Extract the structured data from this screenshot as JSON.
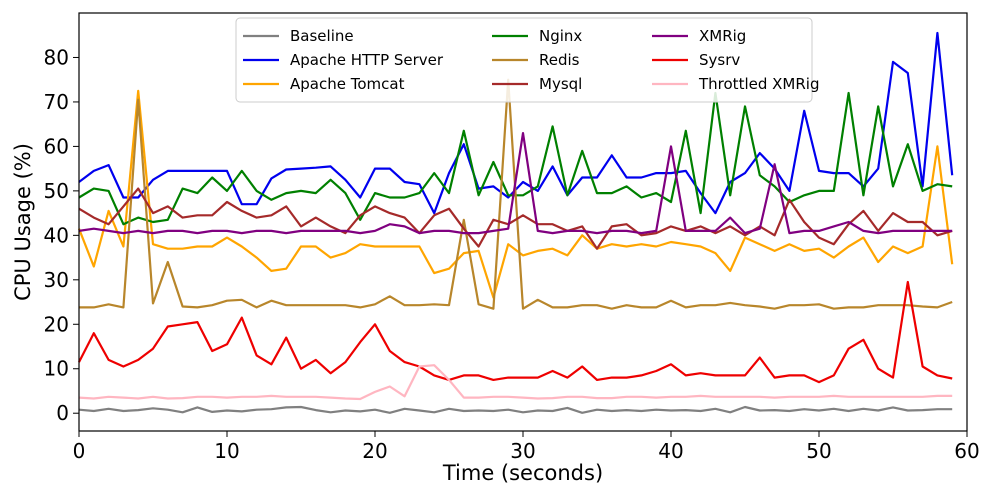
{
  "chart_data": {
    "type": "line",
    "title": "",
    "xlabel": "Time (seconds)",
    "ylabel": "CPU Usage (%)",
    "xlim": [
      0,
      60
    ],
    "ylim": [
      -4,
      90
    ],
    "xticks": [
      0,
      10,
      20,
      30,
      40,
      50,
      60
    ],
    "yticks": [
      0,
      10,
      20,
      30,
      40,
      50,
      60,
      70,
      80
    ],
    "grid": false,
    "legend_position": "top-center",
    "x": [
      0,
      1,
      2,
      3,
      4,
      5,
      6,
      7,
      8,
      9,
      10,
      11,
      12,
      13,
      14,
      15,
      16,
      17,
      18,
      19,
      20,
      21,
      22,
      23,
      24,
      25,
      26,
      27,
      28,
      29,
      30,
      31,
      32,
      33,
      34,
      35,
      36,
      37,
      38,
      39,
      40,
      41,
      42,
      43,
      44,
      45,
      46,
      47,
      48,
      49,
      50,
      51,
      52,
      53,
      54,
      55,
      56,
      57,
      58,
      59
    ],
    "series": [
      {
        "name": "Baseline",
        "color": "#808080",
        "values": [
          0.8,
          0.5,
          1.0,
          0.5,
          0.7,
          1.1,
          0.8,
          0.2,
          1.3,
          0.3,
          0.6,
          0.4,
          0.8,
          0.9,
          1.3,
          1.4,
          0.7,
          0.2,
          0.6,
          0.4,
          0.8,
          0.1,
          1.0,
          0.6,
          0.2,
          1.0,
          0.5,
          0.6,
          0.5,
          0.8,
          0.2,
          0.6,
          0.5,
          1.2,
          0.1,
          0.8,
          0.5,
          0.7,
          0.5,
          0.8,
          0.6,
          0.7,
          0.5,
          1.0,
          0.2,
          1.4,
          0.6,
          0.7,
          0.5,
          0.9,
          0.6,
          1.0,
          0.5,
          1.0,
          0.6,
          1.3,
          0.6,
          0.7,
          0.9,
          0.9
        ]
      },
      {
        "name": "Apache HTTP Server",
        "color": "#0000ee",
        "values": [
          52.0,
          54.5,
          55.8,
          48.5,
          48.5,
          52.5,
          54.5,
          54.5,
          54.5,
          54.5,
          54.5,
          47.0,
          47.0,
          52.8,
          54.8,
          55.0,
          55.2,
          55.5,
          52.5,
          48.5,
          55.0,
          55.0,
          52.0,
          51.5,
          45.0,
          54.0,
          60.5,
          50.5,
          51.0,
          48.5,
          52.0,
          50.0,
          55.5,
          49.0,
          53.0,
          53.0,
          58.0,
          53.0,
          53.0,
          54.0,
          54.0,
          54.5,
          49.5,
          45.0,
          52.0,
          54.0,
          58.5,
          55.0,
          50.0,
          68.0,
          54.5,
          54.0,
          54.0,
          51.0,
          55.0,
          79.0,
          76.5,
          51.0,
          85.5,
          53.5
        ]
      },
      {
        "name": "Apache Tomcat",
        "color": "#ffa500",
        "values": [
          41.5,
          33.0,
          45.5,
          37.5,
          72.5,
          38.0,
          37.0,
          37.0,
          37.5,
          37.5,
          39.5,
          37.5,
          35.0,
          32.0,
          32.5,
          37.5,
          37.5,
          35.0,
          36.0,
          38.0,
          37.5,
          37.5,
          37.5,
          37.5,
          31.5,
          32.5,
          36.0,
          36.5,
          26.0,
          38.0,
          35.5,
          36.5,
          37.0,
          35.5,
          40.0,
          37.0,
          38.0,
          37.5,
          38.0,
          37.5,
          38.5,
          38.0,
          37.5,
          36.0,
          32.0,
          39.5,
          38.0,
          36.5,
          38.0,
          36.5,
          37.0,
          35.0,
          37.5,
          39.5,
          34.0,
          37.5,
          36.0,
          37.5,
          60.0,
          33.5
        ]
      },
      {
        "name": "Nginx",
        "color": "#008000",
        "values": [
          48.5,
          50.5,
          50.0,
          42.5,
          44.0,
          43.0,
          43.5,
          50.5,
          49.5,
          53.0,
          50.0,
          54.5,
          50.0,
          48.0,
          49.5,
          50.0,
          49.5,
          52.5,
          49.5,
          43.5,
          49.5,
          48.5,
          48.5,
          49.5,
          54.0,
          49.5,
          63.5,
          49.0,
          56.5,
          49.0,
          49.0,
          51.0,
          64.5,
          49.0,
          59.0,
          49.5,
          49.5,
          51.0,
          48.5,
          49.5,
          47.5,
          63.5,
          45.0,
          72.0,
          49.0,
          69.0,
          53.5,
          51.0,
          47.5,
          49.0,
          50.0,
          50.0,
          72.0,
          49.0,
          69.0,
          51.0,
          60.5,
          50.0,
          51.5,
          51.0
        ]
      },
      {
        "name": "Redis",
        "color": "#b8862b",
        "values": [
          23.8,
          23.8,
          24.5,
          23.8,
          70.5,
          24.7,
          34.0,
          24.0,
          23.8,
          24.3,
          25.3,
          25.5,
          23.8,
          25.3,
          24.3,
          24.3,
          24.3,
          24.3,
          24.3,
          23.8,
          24.5,
          26.3,
          24.3,
          24.3,
          24.5,
          24.3,
          43.5,
          24.5,
          23.5,
          75.0,
          23.5,
          25.5,
          23.8,
          23.8,
          24.3,
          24.3,
          23.5,
          24.3,
          23.8,
          23.8,
          25.3,
          23.8,
          24.3,
          24.3,
          24.8,
          24.3,
          24.0,
          23.5,
          24.3,
          24.3,
          24.5,
          23.5,
          23.8,
          23.8,
          24.3,
          24.3,
          24.3,
          24.0,
          23.8,
          25.0
        ]
      },
      {
        "name": "Mysql",
        "color": "#a52a2a",
        "values": [
          46.0,
          44.0,
          42.5,
          46.5,
          50.5,
          45.0,
          46.5,
          44.0,
          44.5,
          44.5,
          47.5,
          45.5,
          44.0,
          44.5,
          46.5,
          42.0,
          44.0,
          42.0,
          40.5,
          44.5,
          46.5,
          45.0,
          44.0,
          40.5,
          44.5,
          46.0,
          41.5,
          37.5,
          43.5,
          42.5,
          44.5,
          42.5,
          42.5,
          41.0,
          42.0,
          37.0,
          42.0,
          42.5,
          40.0,
          40.5,
          42.0,
          41.0,
          42.0,
          40.5,
          42.0,
          40.0,
          42.0,
          40.0,
          48.0,
          43.0,
          39.5,
          38.0,
          42.5,
          45.5,
          41.0,
          45.0,
          43.0,
          43.0,
          40.0,
          41.0
        ]
      },
      {
        "name": "XMRig",
        "color": "#800080",
        "values": [
          41.0,
          41.5,
          41.0,
          40.5,
          41.0,
          40.5,
          41.0,
          41.0,
          40.5,
          41.0,
          41.0,
          40.5,
          41.0,
          41.0,
          40.5,
          41.0,
          41.0,
          41.0,
          41.0,
          40.5,
          41.0,
          42.5,
          42.0,
          40.5,
          41.0,
          41.0,
          40.5,
          40.5,
          41.0,
          41.5,
          63.0,
          41.0,
          40.5,
          41.0,
          41.0,
          40.5,
          41.0,
          41.0,
          40.5,
          41.0,
          60.0,
          41.0,
          41.0,
          41.0,
          44.0,
          40.5,
          41.5,
          56.0,
          40.5,
          41.0,
          41.0,
          42.0,
          43.0,
          41.0,
          40.5,
          41.0,
          41.0,
          41.0,
          41.0,
          41.0
        ]
      },
      {
        "name": "Sysrv",
        "color": "#ee0000",
        "values": [
          11.5,
          18.0,
          12.0,
          10.5,
          12.0,
          14.5,
          19.5,
          20.0,
          20.5,
          14.0,
          15.5,
          21.5,
          13.0,
          11.0,
          17.0,
          10.0,
          12.0,
          9.0,
          11.5,
          16.0,
          20.0,
          14.0,
          11.5,
          10.5,
          8.5,
          7.5,
          8.5,
          8.5,
          7.5,
          8.0,
          8.0,
          8.0,
          9.5,
          8.0,
          10.5,
          7.5,
          8.0,
          8.0,
          8.5,
          9.5,
          11.0,
          8.5,
          9.0,
          8.5,
          8.5,
          8.5,
          12.5,
          8.0,
          8.5,
          8.5,
          7.0,
          8.5,
          14.5,
          16.5,
          10.0,
          8.0,
          29.5,
          10.5,
          8.5,
          7.8
        ]
      },
      {
        "name": "Throttled XMRig",
        "color": "#ffb6c1",
        "values": [
          3.5,
          3.3,
          3.7,
          3.5,
          3.3,
          3.7,
          3.3,
          3.4,
          3.7,
          3.7,
          3.5,
          3.7,
          3.7,
          3.9,
          3.7,
          3.7,
          3.7,
          3.5,
          3.3,
          3.2,
          4.8,
          6.0,
          3.8,
          10.5,
          10.8,
          7.5,
          3.5,
          3.5,
          3.7,
          3.7,
          3.5,
          3.3,
          3.4,
          3.7,
          3.7,
          3.4,
          3.4,
          3.7,
          3.7,
          3.5,
          3.7,
          3.7,
          3.9,
          3.7,
          3.7,
          3.7,
          3.7,
          3.5,
          3.7,
          3.7,
          3.7,
          3.9,
          3.7,
          3.7,
          3.7,
          3.7,
          3.7,
          3.7,
          3.9,
          3.9
        ]
      }
    ]
  }
}
